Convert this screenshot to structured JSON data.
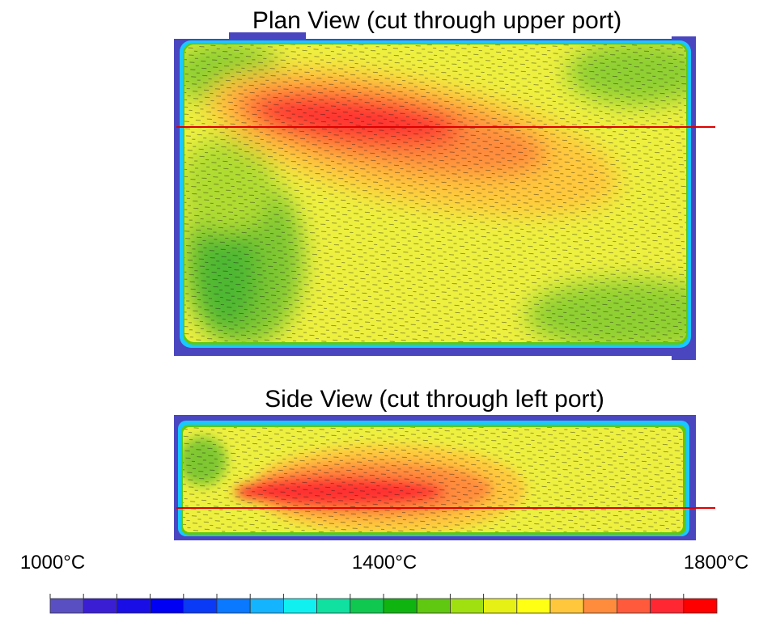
{
  "plan_view": {
    "title": "Plan View (cut through upper port)"
  },
  "side_view": {
    "title": "Side View (cut through left port)"
  },
  "colorbar": {
    "labels": [
      "1000°C",
      "1400°C",
      "1800°C"
    ],
    "colors": [
      "#5a4fc2",
      "#3a1ed4",
      "#1a0ee6",
      "#0000f5",
      "#0a3af5",
      "#0a78ff",
      "#14b4ff",
      "#10f0f0",
      "#10e0a0",
      "#10c850",
      "#10b410",
      "#60c810",
      "#a0e010",
      "#e6f014",
      "#ffff14",
      "#ffc83c",
      "#ff8c3c",
      "#ff5a3c",
      "#ff2832",
      "#ff0000"
    ]
  }
}
